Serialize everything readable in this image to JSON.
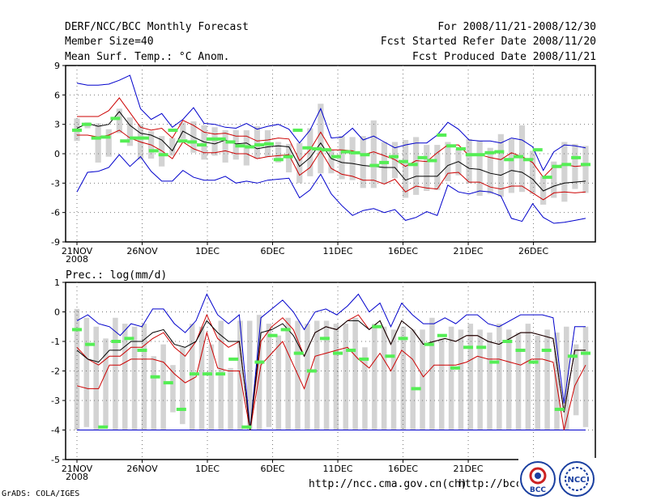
{
  "header": {
    "title": "DERF/NCC/BCC Monthly Forecast",
    "member_size": "Member Size=40",
    "variable": "Mean Surf. Temp.: °C Anom.",
    "period": "For 2008/11/21-2008/12/30",
    "refer_date": "Fcst Started Refer Date 2008/11/20",
    "produced_date": "Fcst Produced Date 2008/11/21"
  },
  "footer": {
    "grads": "GrADS: COLA/IGES",
    "url1": "http://ncc.cma.gov.cn(ch)",
    "url2": "http://bcc.c"
  },
  "logos": {
    "left": "BCC",
    "right": "NCC"
  },
  "colors": {
    "max_min": "#0000cc",
    "mean": "#000000",
    "spread": "#cc0000",
    "box": "#d3d3d3",
    "median": "#55ee55"
  },
  "chart_data": [
    {
      "type": "line",
      "title": "Mean Surf. Temp.: °C Anom.",
      "ylim": [
        -9,
        9
      ],
      "yticks": [
        "-9",
        "-6",
        "-3",
        "0",
        "3",
        "6",
        "9"
      ],
      "xticks": [
        "21NOV",
        "26NOV",
        "1DEC",
        "6DEC",
        "11DEC",
        "16DEC",
        "21DEC",
        "26DEC"
      ],
      "xtick_sub": "2008",
      "days": 40,
      "max": [
        7.2,
        7,
        7,
        7.1,
        7.5,
        8,
        4.6,
        3.5,
        4.1,
        2.7,
        3.5,
        4.7,
        3.1,
        3,
        2.7,
        2.6,
        3.1,
        2.5,
        2.8,
        3,
        2.5,
        1.1,
        2.4,
        4.6,
        1.6,
        1.7,
        2.6,
        1.4,
        1.8,
        1.2,
        0.6,
        0.9,
        1.1,
        1.1,
        1.9,
        3.2,
        2.5,
        1.4,
        1.3,
        1.3,
        1.1,
        1.6,
        1.4,
        0.7,
        -1.7,
        0.2,
        0.9,
        0.8,
        0.6
      ],
      "upper": [
        3.8,
        3.8,
        3.8,
        4.4,
        5.7,
        4.2,
        2.7,
        2.4,
        2.6,
        1.6,
        3.4,
        2.9,
        2.2,
        2,
        2.1,
        1.8,
        1.8,
        1.3,
        1.4,
        1.6,
        1.5,
        -0.7,
        0.4,
        2.2,
        0.4,
        0.4,
        0.3,
        -0.1,
        0.2,
        -0.2,
        -0.6,
        -1.3,
        -0.7,
        -0.8,
        0.1,
        0.9,
        0.9,
        -0.2,
        -0.1,
        -0.4,
        -0.6,
        0.1,
        -0.3,
        -0.9,
        -2.4,
        -1.3,
        -1.1,
        -1.3,
        -1.2
      ],
      "mean": [
        2.6,
        3.1,
        2.8,
        3,
        4.3,
        2.9,
        2.1,
        1.9,
        1.4,
        0.3,
        2.3,
        1.7,
        1.2,
        1,
        1.4,
        1,
        1.1,
        0.5,
        0.7,
        0.8,
        0.7,
        -1.3,
        -0.4,
        1.1,
        -0.5,
        -0.9,
        -1,
        -1.2,
        -1.3,
        -1.4,
        -1.4,
        -2.7,
        -2.3,
        -2.3,
        -2.3,
        -1.2,
        -0.8,
        -1.5,
        -1.6,
        -2,
        -2.2,
        -1.7,
        -1.9,
        -2.6,
        -3.8,
        -3.3,
        -3,
        -2.9,
        -2.8
      ],
      "lower": [
        1.9,
        1.9,
        1.7,
        1.9,
        2.4,
        1.6,
        1.2,
        0.9,
        0.3,
        -0.5,
        1.2,
        0.5,
        0.1,
        0.1,
        0.3,
        0,
        0,
        -0.5,
        -0.3,
        -0.2,
        -0.1,
        -2.2,
        -1.4,
        0.3,
        -1.5,
        -2.1,
        -2.3,
        -2.7,
        -2.7,
        -3.1,
        -2.6,
        -3.9,
        -3.3,
        -3.5,
        -3.6,
        -2,
        -1.9,
        -2.9,
        -2.9,
        -3.4,
        -3.6,
        -3.3,
        -3.3,
        -4,
        -4.7,
        -4,
        -3.9,
        -4,
        -3.9
      ],
      "min": [
        -3.9,
        -1.9,
        -1.8,
        -1.4,
        -0.1,
        -1.3,
        -0.3,
        -1.8,
        -2.8,
        -2.8,
        -1.7,
        -2.4,
        -2.7,
        -2.7,
        -2.3,
        -3,
        -2.8,
        -3,
        -2.7,
        -2.6,
        -2.5,
        -4.5,
        -3.7,
        -2.1,
        -4.1,
        -5.3,
        -6.3,
        -5.8,
        -5.6,
        -6,
        -5.7,
        -6.8,
        -6.5,
        -5.9,
        -6.3,
        -3.2,
        -3.9,
        -4.1,
        -3.8,
        -3.9,
        -4.3,
        -6.6,
        -6.9,
        -5.1,
        -6.5,
        -7.1,
        -7,
        -6.8,
        -6.6
      ],
      "boxes": [
        [
          1.3,
          3.6
        ],
        [
          2.6,
          3.2
        ],
        [
          -0.9,
          3.1
        ],
        [
          -0.3,
          2.5
        ],
        [
          2.1,
          4.6
        ],
        [
          0.8,
          3.7
        ],
        [
          -0.6,
          3
        ],
        [
          -0.5,
          2.3
        ],
        [
          -1.3,
          1.8
        ],
        [
          -0.2,
          1.6
        ],
        [
          1.5,
          3.2
        ],
        [
          0.1,
          3.3
        ],
        [
          -0.6,
          2.9
        ],
        [
          -0.2,
          2.7
        ],
        [
          -0.9,
          2.4
        ],
        [
          -0.6,
          2.4
        ],
        [
          -1.2,
          2.4
        ],
        [
          -0.5,
          2.8
        ],
        [
          -0.3,
          2.4
        ],
        [
          -0.9,
          1.2
        ],
        [
          -1.9,
          1
        ],
        [
          -3,
          1.1
        ],
        [
          -2.3,
          2.6
        ],
        [
          -2,
          5.1
        ],
        [
          -2,
          0.4
        ],
        [
          -2.6,
          1.8
        ],
        [
          -2.7,
          1.7
        ],
        [
          -3.5,
          1.8
        ],
        [
          -3.5,
          3.4
        ],
        [
          -3.1,
          1.2
        ],
        [
          -2.5,
          1.2
        ],
        [
          -4.5,
          1.4
        ],
        [
          -4.2,
          1.7
        ],
        [
          -3.8,
          0.9
        ],
        [
          -3.7,
          0.9
        ],
        [
          -2.8,
          1.2
        ],
        [
          -2.2,
          0.5
        ],
        [
          -3,
          1.5
        ],
        [
          -4.3,
          1.3
        ],
        [
          -4.1,
          0.6
        ],
        [
          -4.4,
          2
        ],
        [
          -4,
          1.5
        ],
        [
          -3.9,
          2.9
        ],
        [
          -4.1,
          0.3
        ],
        [
          -5.2,
          -2.3
        ],
        [
          -4.5,
          -0.8
        ],
        [
          -4.9,
          1.2
        ],
        [
          -3.6,
          1
        ],
        [
          -4,
          0.8
        ]
      ],
      "medians": [
        2.4,
        3,
        1.6,
        1.7,
        3.6,
        1.3,
        1.6,
        1.6,
        0.3,
        -0.1,
        2.4,
        1.3,
        1.2,
        0.9,
        1.5,
        1.5,
        1.2,
        0.8,
        0.7,
        0.9,
        1,
        -0.6,
        -0.3,
        2.4,
        0.6,
        0.5,
        0.4,
        -0.3,
        0.2,
        0.1,
        -0.1,
        -1.2,
        -0.9,
        -0.3,
        -0.8,
        -1.1,
        -0.4,
        -0.7,
        1.9,
        0.8,
        0.5,
        -0.1,
        -0.1,
        0.1,
        0.2,
        -0.6,
        -0.3,
        -0.6,
        0.4,
        -2.4,
        -1.3,
        -1.1,
        -0.4,
        -1.1
      ]
    },
    {
      "type": "line",
      "title": "Prec.: log(mm/d)",
      "ylim": [
        -5,
        1
      ],
      "yticks": [
        "-5",
        "-4",
        "-3",
        "-2",
        "-1",
        "0",
        "1"
      ],
      "xticks": [
        "21NOV",
        "26NOV",
        "1DEC",
        "6DEC",
        "11DEC",
        "16DEC",
        "21DEC",
        "26DEC"
      ],
      "xtick_sub": "2008",
      "days": 40,
      "max": [
        -0.3,
        -0.1,
        -0.4,
        -0.5,
        -0.8,
        -0.4,
        -0.5,
        0.1,
        0.1,
        -0.4,
        -0.7,
        -0.3,
        0.6,
        -0.1,
        -0.4,
        -0.1,
        -4,
        -0.2,
        0.1,
        0.4,
        0,
        -0.6,
        0,
        0.1,
        -0.1,
        0.2,
        0.6,
        0,
        0.3,
        -0.5,
        0.3,
        -0.1,
        -0.4,
        -0.4,
        -0.2,
        -0.4,
        -0.1,
        -0.1,
        -0.4,
        -0.5,
        -0.3,
        -0.1,
        -0.1,
        -0.1,
        -0.2,
        -3.1,
        -0.5,
        -0.5
      ],
      "upper": [
        -1.2,
        -1.6,
        -1.8,
        -1.5,
        -1.5,
        -1.2,
        -1.2,
        -0.9,
        -0.7,
        -1.2,
        -1.5,
        -1.0,
        -0.1,
        -0.9,
        -1.2,
        -1.0,
        -4,
        -1,
        -0.5,
        -0.2,
        -0.6,
        -1.5,
        -0.7,
        -0.5,
        -0.6,
        -0.3,
        -0.1,
        -0.6,
        -0.3,
        -1.1,
        -0.3,
        -0.6,
        -1.1,
        -1,
        -0.9,
        -1,
        -0.8,
        -0.8,
        -1,
        -1.1,
        -0.9,
        -0.7,
        -0.7,
        -0.8,
        -0.9,
        -3.4,
        -1.3,
        -1.3
      ],
      "mean": [
        -1.3,
        -1.6,
        -1.7,
        -1.3,
        -1.3,
        -1,
        -1,
        -0.7,
        -0.6,
        -1.1,
        -1.2,
        -1.0,
        -0.3,
        -0.7,
        -1.0,
        -1.0,
        -4,
        -0.7,
        -0.6,
        -0.4,
        -0.8,
        -1.5,
        -0.7,
        -0.5,
        -0.6,
        -0.3,
        -0.3,
        -0.6,
        -0.3,
        -1.1,
        -0.3,
        -0.6,
        -1.1,
        -1,
        -0.9,
        -1,
        -0.8,
        -0.8,
        -1,
        -1.1,
        -0.9,
        -0.7,
        -0.7,
        -0.8,
        -0.9,
        -3.4,
        -1.3,
        -1.3
      ],
      "lower": [
        -2.5,
        -2.6,
        -2.6,
        -1.8,
        -1.8,
        -1.6,
        -1.6,
        -1.6,
        -1.7,
        -2.1,
        -2.4,
        -2.2,
        -0.7,
        -1.9,
        -2,
        -2,
        -4,
        -1.8,
        -1.4,
        -1,
        -1.8,
        -2.6,
        -1.5,
        -1.4,
        -1.3,
        -1.2,
        -1.6,
        -1.9,
        -1.4,
        -2,
        -1.3,
        -1.6,
        -2.2,
        -1.8,
        -1.8,
        -1.8,
        -1.7,
        -1.5,
        -1.6,
        -1.6,
        -1.7,
        -1.8,
        -1.6,
        -1.6,
        -1.7,
        -4,
        -2.5,
        -1.8
      ],
      "min": [
        -4,
        -4,
        -4,
        -4,
        -4,
        -4,
        -4,
        -4,
        -4,
        -4,
        -4,
        -4,
        -4,
        -4,
        -4,
        -4,
        -4,
        -4,
        -4,
        -4,
        -4,
        -4,
        -4,
        -4,
        -4,
        -4,
        -4,
        -4,
        -4,
        -4,
        -4,
        -4,
        -4,
        -4,
        -4,
        -4,
        -4,
        -4,
        -4,
        -4,
        -4,
        -4,
        -4,
        -4,
        -4,
        -4,
        -4,
        -4
      ],
      "boxes": [
        [
          -4,
          0.1
        ],
        [
          -3.9,
          -0.2
        ],
        [
          -4,
          -0.5
        ],
        [
          -3.9,
          -0.9
        ],
        [
          -4,
          -0.2
        ],
        [
          -4,
          -0.4
        ],
        [
          -4,
          -0.5
        ],
        [
          -4,
          -0.4
        ],
        [
          -4,
          -1.5
        ],
        [
          -4,
          -1.1
        ],
        [
          -3.4,
          -1.8
        ],
        [
          -3.8,
          -1.2
        ],
        [
          -4,
          -0.4
        ],
        [
          -4,
          -0.5
        ],
        [
          -4,
          -1.1
        ],
        [
          -4,
          -0.3
        ],
        [
          -4,
          -1.9
        ],
        [
          -4,
          -0.3
        ],
        [
          -4,
          -0.3
        ],
        [
          -4,
          -0.1
        ],
        [
          -3.9,
          -0.4
        ],
        [
          -4,
          -0.8
        ],
        [
          -4,
          -0.2
        ],
        [
          -4,
          -0.3
        ],
        [
          -4,
          -0.4
        ],
        [
          -4,
          -0.3
        ],
        [
          -4,
          -0.3
        ],
        [
          -4,
          -0.4
        ],
        [
          -4,
          -0.4
        ],
        [
          -4,
          -0.2
        ],
        [
          -4,
          -1.2
        ],
        [
          -4,
          -0.4
        ],
        [
          -4,
          -0.5
        ],
        [
          -4,
          -0.6
        ],
        [
          -4,
          -0.5
        ],
        [
          -4,
          -0.6
        ],
        [
          -4,
          -0.6
        ],
        [
          -4,
          -0.2
        ],
        [
          -4,
          -0.9
        ],
        [
          -4,
          -0.5
        ],
        [
          -4,
          -0.6
        ],
        [
          -4,
          -0.4
        ],
        [
          -4,
          -0.6
        ],
        [
          -4,
          -0.7
        ],
        [
          -4,
          -0.4
        ],
        [
          -4,
          -0.6
        ],
        [
          -4,
          -0.7
        ],
        [
          -4,
          -0.4
        ],
        [
          -4,
          -0.8
        ],
        [
          -4,
          -0.6
        ],
        [
          -4,
          -0.7
        ],
        [
          -4,
          -0.5
        ],
        [
          -3.5,
          -1.1
        ],
        [
          -3.9,
          -0.5
        ]
      ],
      "medians": [
        -0.6,
        -1.1,
        -3.9,
        -1,
        -0.9,
        -1.3,
        -2.2,
        -2.4,
        -3.3,
        -2.1,
        -2.1,
        -2.1,
        -1.6,
        -3.9,
        -1.7,
        -0.8,
        -0.6,
        -1.4,
        -2,
        -0.9,
        -1.4,
        -1.3,
        -1.6,
        -0.5,
        -1.5,
        -0.9,
        -2.6,
        -1.1,
        -0.8,
        -1.9,
        -1.2,
        -1.2,
        -1.7,
        -1,
        -1.3,
        -1.7,
        -1.3,
        -3.3,
        -1.5,
        -1.4
      ]
    }
  ]
}
